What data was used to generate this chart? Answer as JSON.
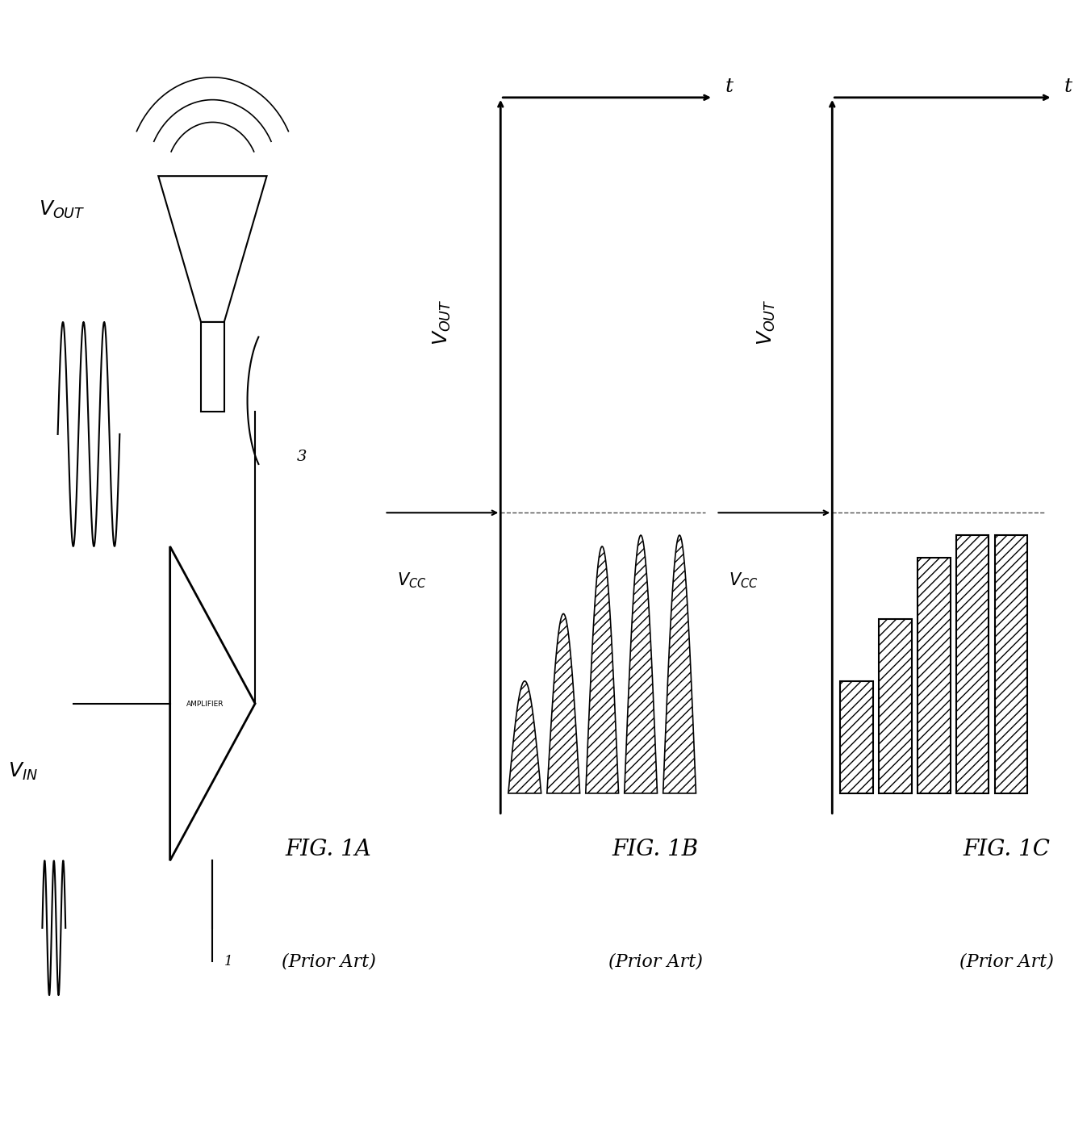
{
  "fig_width": 13.7,
  "fig_height": 25.28,
  "background_color": "#ffffff",
  "fig1a": {
    "label": "FIG. 1A",
    "sublabel": "(Prior Art)",
    "vin_label": "V",
    "vin_sub": "IN",
    "vout_label": "V",
    "vout_sub": "OUT",
    "amplifier_text": "AMPLIFIER",
    "speaker_label": "3",
    "ground_label": "1"
  },
  "fig1b": {
    "label": "FIG. 1B",
    "sublabel": "(Prior Art)",
    "vout_label": "V",
    "vout_sub": "OUT",
    "vcc_label": "V",
    "vcc_sub": "CC",
    "t_label": "t",
    "num_cycles": 5
  },
  "fig1c": {
    "label": "FIG. 1C",
    "sublabel": "(Prior Art)",
    "vout_label": "V",
    "vout_sub": "OUT",
    "vcc_label": "V",
    "vcc_sub": "CC",
    "t_label": "t",
    "num_pulses": 5
  }
}
